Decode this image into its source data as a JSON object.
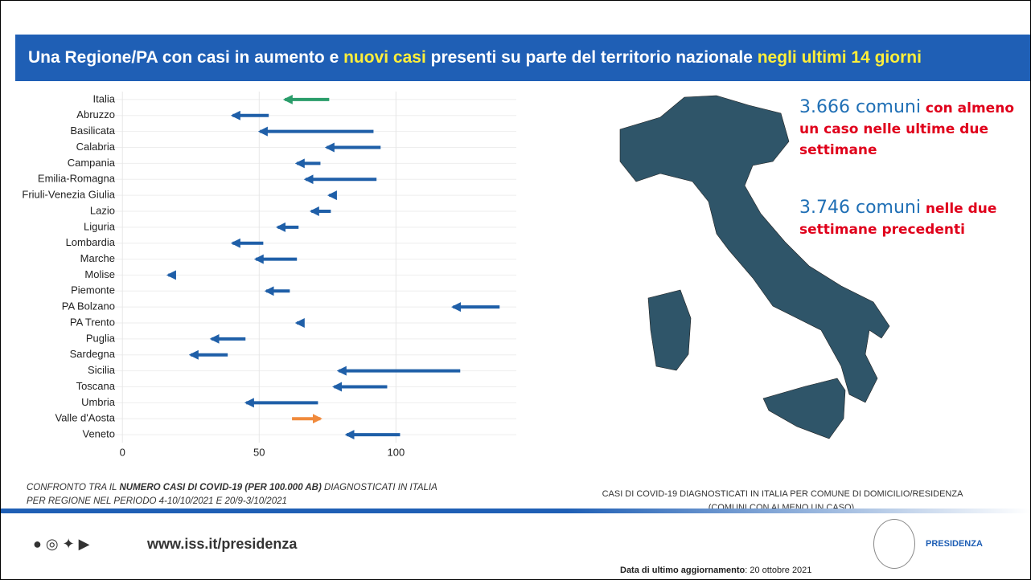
{
  "header": {
    "parts": [
      {
        "text": "Una Regione/PA con casi in aumento e ",
        "hl": false
      },
      {
        "text": "nuovi casi",
        "hl": true
      },
      {
        "text": " presenti su parte del territorio nazionale ",
        "hl": false
      },
      {
        "text": "negli ultimi 14 giorni",
        "hl": true
      }
    ]
  },
  "chart_data": {
    "type": "arrow",
    "categories": [
      "Italia",
      "Abruzzo",
      "Basilicata",
      "Calabria",
      "Campania",
      "Emilia-Romagna",
      "Friuli-Venezia Giulia",
      "Lazio",
      "Liguria",
      "Lombardia",
      "Marche",
      "Molise",
      "Piemonte",
      "PA Bolzano",
      "PA Trento",
      "Puglia",
      "Sardegna",
      "Sicilia",
      "Toscana",
      "Umbria",
      "Valle d'Aosta",
      "Veneto"
    ],
    "start": [
      75.6,
      53.5,
      91.8,
      94.4,
      72.4,
      92.9,
      77.6,
      76.2,
      64.4,
      51.5,
      63.8,
      19.1,
      61.2,
      137.9,
      66.2,
      45,
      38.5,
      123.5,
      96.8,
      71.5,
      62,
      101.5
    ],
    "end": [
      59.4,
      40.3,
      50.3,
      74.7,
      63.8,
      67,
      75.6,
      69.1,
      56.8,
      40.3,
      48.8,
      16.8,
      52.6,
      120.9,
      63.8,
      32.6,
      25,
      79.1,
      77.4,
      45.3,
      72.4,
      82
    ],
    "colors": [
      "#2a9d6a",
      "#1f5fa8",
      "#1f5fa8",
      "#1f5fa8",
      "#1f5fa8",
      "#1f5fa8",
      "#1f5fa8",
      "#1f5fa8",
      "#1f5fa8",
      "#1f5fa8",
      "#1f5fa8",
      "#1f5fa8",
      "#1f5fa8",
      "#1f5fa8",
      "#1f5fa8",
      "#1f5fa8",
      "#1f5fa8",
      "#1f5fa8",
      "#1f5fa8",
      "#1f5fa8",
      "#f08a3c",
      "#1f5fa8"
    ],
    "xlim": [
      -3,
      144
    ],
    "xticks": [
      0,
      50,
      100
    ],
    "grid": true
  },
  "caption": {
    "pre": "CONFRONTO TRA IL ",
    "bold": "NUMERO CASI DI COVID-19 (PER 100.000 AB)",
    "post": " DIAGNOSTICATI IN ITALIA",
    "line2": "PER REGIONE NEL PERIODO 4-10/10/2021 E 20/9-3/10/2021"
  },
  "map": {
    "stat1_num": "3.666 comuni",
    "stat1_text": "con almeno un caso nelle ultime due settimane",
    "stat2_num": "3.746 comuni",
    "stat2_text": "nelle due settimane precedenti",
    "caption_line1": "CASI DI COVID-19 DIAGNOSTICATI IN ITALIA PER COMUNE DI DOMICILIO/RESIDENZA",
    "caption_line2": "(COMUNI CON ALMENO UN CASO)."
  },
  "footer": {
    "url": "www.iss.it/presidenza",
    "logo": "PRESIDENZA",
    "date_label": "Data di ultimo aggiornamento",
    "date": ": 20 ottobre 2021"
  }
}
